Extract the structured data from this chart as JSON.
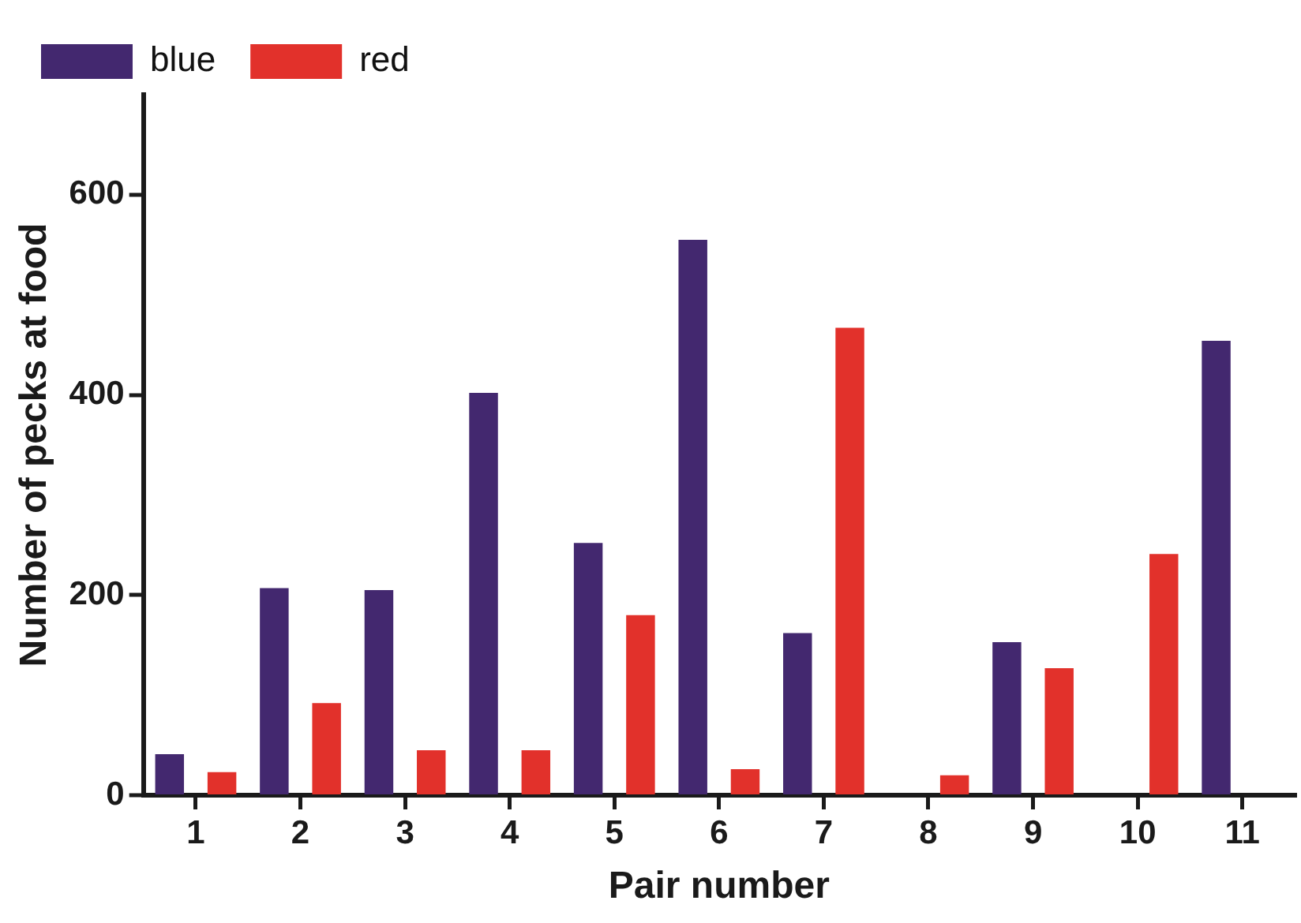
{
  "chart_data": {
    "type": "bar",
    "xlabel": "Pair number",
    "ylabel": "Number of pecks at food",
    "categories": [
      "1",
      "2",
      "3",
      "4",
      "5",
      "6",
      "7",
      "8",
      "9",
      "10",
      "11"
    ],
    "series": [
      {
        "name": "blue",
        "color": "#43286f",
        "values": [
          41,
          207,
          205,
          402,
          252,
          555,
          162,
          0,
          153,
          0,
          454
        ]
      },
      {
        "name": "red",
        "color": "#e2312b",
        "values": [
          23,
          92,
          45,
          45,
          180,
          26,
          467,
          20,
          127,
          241,
          0
        ]
      }
    ],
    "ylim": [
      0,
      700
    ],
    "yticks": [
      0,
      200,
      400,
      600
    ],
    "grid": false,
    "legend": "top left"
  }
}
